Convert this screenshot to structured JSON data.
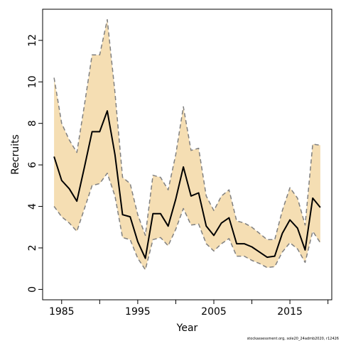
{
  "chart_data": {
    "type": "line",
    "xlabel": "Year",
    "ylabel": "Recruits",
    "xlim": [
      1982.5,
      2020.5
    ],
    "ylim": [
      -0.5,
      13.5
    ],
    "x_ticks": [
      1985,
      1995,
      2005,
      2015
    ],
    "x_tick_labels": [
      "1985",
      "1995",
      "2005",
      "2015"
    ],
    "x_minor_ticks": [
      1990,
      2000,
      2010,
      2020
    ],
    "y_ticks": [
      0,
      2,
      4,
      6,
      8,
      10,
      12
    ],
    "y_tick_labels": [
      "0",
      "2",
      "4",
      "6",
      "8",
      "10",
      "12"
    ],
    "grid": false,
    "footnote": "stockassessment.org, sole20_24admb2020, r12426",
    "colors": {
      "band": "#f5deb3",
      "median": "#000000",
      "bounds": "#808080"
    },
    "x": [
      1984,
      1985,
      1986,
      1987,
      1988,
      1989,
      1990,
      1991,
      1992,
      1993,
      1994,
      1995,
      1996,
      1997,
      1998,
      1999,
      2000,
      2001,
      2002,
      2003,
      2004,
      2005,
      2006,
      2007,
      2008,
      2009,
      2010,
      2011,
      2012,
      2013,
      2014,
      2015,
      2016,
      2017,
      2018,
      2019
    ],
    "series": [
      {
        "role": "estimate",
        "values": [
          6.4,
          5.25,
          4.85,
          4.25,
          5.9,
          7.6,
          7.6,
          8.6,
          6.5,
          3.6,
          3.5,
          2.3,
          1.5,
          3.65,
          3.65,
          3.05,
          4.35,
          5.9,
          4.5,
          4.65,
          3.05,
          2.6,
          3.2,
          3.45,
          2.2,
          2.2,
          2.05,
          1.8,
          1.55,
          1.6,
          2.7,
          3.35,
          2.95,
          1.9,
          4.4,
          3.95
        ]
      },
      {
        "role": "upper",
        "values": [
          10.2,
          8.0,
          7.2,
          6.6,
          8.9,
          11.3,
          11.3,
          13.0,
          9.5,
          5.4,
          5.1,
          3.6,
          2.6,
          5.5,
          5.4,
          4.8,
          6.5,
          8.8,
          6.7,
          6.8,
          4.5,
          3.8,
          4.5,
          4.8,
          3.3,
          3.2,
          3.0,
          2.7,
          2.4,
          2.4,
          3.8,
          4.9,
          4.4,
          3.1,
          7.0,
          6.95
        ]
      },
      {
        "role": "lower",
        "values": [
          4.0,
          3.5,
          3.2,
          2.8,
          3.9,
          5.0,
          5.1,
          5.6,
          4.5,
          2.5,
          2.4,
          1.5,
          0.95,
          2.4,
          2.5,
          2.1,
          2.9,
          3.9,
          3.1,
          3.15,
          2.2,
          1.85,
          2.2,
          2.45,
          1.6,
          1.6,
          1.4,
          1.25,
          1.05,
          1.1,
          1.8,
          2.25,
          1.95,
          1.3,
          2.8,
          2.25
        ]
      }
    ]
  }
}
